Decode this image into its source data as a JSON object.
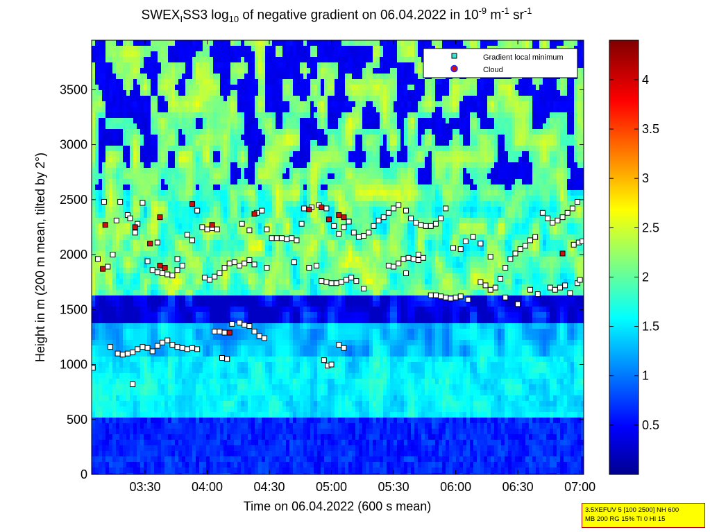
{
  "title": {
    "prefix": "SWEX",
    "prefix_sub": "I",
    "name": "SS3 log",
    "log_sub": "10",
    "middle": " of negative gradient on 06.04.2022 in 10",
    "exp1": "-9",
    "unit1": " m",
    "exp2": "-1",
    "unit2": " sr",
    "exp3": "-1"
  },
  "info_box": {
    "line1": "3.5XEFUV 5 [100 2500] NH 600",
    "line2": "MB 200 RG 15% TI 0 HI 15"
  },
  "chart_data": {
    "type": "heatmap",
    "xlabel": "Time on 06.04.2022 (600 s mean)",
    "ylabel": "Height in m (200 m mean, tilted by 2°)",
    "x_tick_labels": [
      "03:30",
      "04:00",
      "04:30",
      "05:00",
      "05:30",
      "06:00",
      "06:30",
      "07:00"
    ],
    "x_tick_hours": [
      3.5,
      4.0,
      4.5,
      5.0,
      5.5,
      6.0,
      6.5,
      7.0
    ],
    "xlim_hours": [
      3.07,
      7.03
    ],
    "y_ticks": [
      0,
      500,
      1000,
      1500,
      2000,
      2500,
      3000,
      3500
    ],
    "ylim": [
      0,
      3950
    ],
    "colorbar": {
      "ticks": [
        0.5,
        1,
        1.5,
        2,
        2.5,
        3,
        3.5,
        4
      ],
      "range": [
        0,
        4.4
      ],
      "colormap": "jet"
    },
    "legend": {
      "placement": "top-right",
      "entries": [
        {
          "label": "Gradient local minimum",
          "color": "#40e0d0"
        },
        {
          "label": "Cloud",
          "color": "#d01010"
        }
      ]
    },
    "gradient_minima": [
      [
        3.08,
        970
      ],
      [
        3.12,
        1960
      ],
      [
        3.17,
        2480
      ],
      [
        3.2,
        1890
      ],
      [
        3.24,
        2000
      ],
      [
        3.27,
        2310
      ],
      [
        3.22,
        1160
      ],
      [
        3.28,
        1100
      ],
      [
        3.32,
        1090
      ],
      [
        3.36,
        1100
      ],
      [
        3.4,
        1110
      ],
      [
        3.44,
        1140
      ],
      [
        3.48,
        1160
      ],
      [
        3.52,
        1150
      ],
      [
        3.56,
        1120
      ],
      [
        3.6,
        1170
      ],
      [
        3.64,
        1200
      ],
      [
        3.68,
        1220
      ],
      [
        3.72,
        1180
      ],
      [
        3.76,
        1160
      ],
      [
        3.8,
        1150
      ],
      [
        3.84,
        1140
      ],
      [
        3.88,
        1150
      ],
      [
        3.92,
        1140
      ],
      [
        3.3,
        2480
      ],
      [
        3.36,
        2360
      ],
      [
        3.42,
        2200
      ],
      [
        3.48,
        2470
      ],
      [
        3.52,
        1940
      ],
      [
        3.56,
        1860
      ],
      [
        3.6,
        1840
      ],
      [
        3.64,
        1830
      ],
      [
        3.68,
        1820
      ],
      [
        3.72,
        1810
      ],
      [
        3.76,
        1860
      ],
      [
        3.8,
        1900
      ],
      [
        3.84,
        2180
      ],
      [
        3.88,
        2130
      ],
      [
        3.92,
        2400
      ],
      [
        3.96,
        2250
      ],
      [
        4.0,
        2230
      ],
      [
        4.04,
        2240
      ],
      [
        4.08,
        2230
      ],
      [
        3.98,
        1790
      ],
      [
        4.02,
        1770
      ],
      [
        4.06,
        1800
      ],
      [
        4.1,
        1830
      ],
      [
        4.14,
        1880
      ],
      [
        4.18,
        1920
      ],
      [
        4.22,
        1930
      ],
      [
        4.26,
        1900
      ],
      [
        4.3,
        1920
      ],
      [
        4.34,
        1950
      ],
      [
        4.38,
        1910
      ],
      [
        4.06,
        1300
      ],
      [
        4.1,
        1300
      ],
      [
        4.14,
        1290
      ],
      [
        4.2,
        1370
      ],
      [
        4.26,
        1380
      ],
      [
        4.3,
        1360
      ],
      [
        4.34,
        1350
      ],
      [
        4.38,
        1300
      ],
      [
        4.42,
        1260
      ],
      [
        4.46,
        1240
      ],
      [
        4.12,
        1060
      ],
      [
        4.16,
        1050
      ],
      [
        4.28,
        2280
      ],
      [
        4.34,
        2220
      ],
      [
        4.4,
        2380
      ],
      [
        4.44,
        2400
      ],
      [
        4.48,
        2230
      ],
      [
        4.52,
        2150
      ],
      [
        4.56,
        2150
      ],
      [
        4.6,
        2150
      ],
      [
        4.64,
        2140
      ],
      [
        4.68,
        2150
      ],
      [
        4.72,
        2130
      ],
      [
        4.78,
        2420
      ],
      [
        4.84,
        2430
      ],
      [
        4.9,
        2450
      ],
      [
        4.96,
        2420
      ],
      [
        4.82,
        1880
      ],
      [
        4.88,
        1900
      ],
      [
        4.92,
        1760
      ],
      [
        4.96,
        1750
      ],
      [
        5.0,
        1740
      ],
      [
        5.04,
        1740
      ],
      [
        5.08,
        1750
      ],
      [
        5.12,
        1770
      ],
      [
        5.16,
        1790
      ],
      [
        5.2,
        1760
      ],
      [
        4.94,
        1040
      ],
      [
        4.97,
        990
      ],
      [
        5.0,
        1000
      ],
      [
        5.06,
        1180
      ],
      [
        5.1,
        1150
      ],
      [
        5.02,
        2260
      ],
      [
        5.06,
        2190
      ],
      [
        5.1,
        2250
      ],
      [
        5.14,
        2300
      ],
      [
        5.18,
        2200
      ],
      [
        5.22,
        2160
      ],
      [
        5.26,
        2170
      ],
      [
        5.3,
        2200
      ],
      [
        5.34,
        2260
      ],
      [
        5.38,
        2310
      ],
      [
        5.42,
        2340
      ],
      [
        5.46,
        2380
      ],
      [
        5.5,
        2420
      ],
      [
        5.54,
        2450
      ],
      [
        5.46,
        1900
      ],
      [
        5.5,
        1890
      ],
      [
        5.54,
        1920
      ],
      [
        5.58,
        1960
      ],
      [
        5.62,
        1970
      ],
      [
        5.66,
        1960
      ],
      [
        5.7,
        1950
      ],
      [
        5.74,
        1970
      ],
      [
        5.6,
        2400
      ],
      [
        5.64,
        2330
      ],
      [
        5.68,
        2290
      ],
      [
        5.72,
        2270
      ],
      [
        5.76,
        2260
      ],
      [
        5.8,
        2260
      ],
      [
        5.84,
        2280
      ],
      [
        5.88,
        2330
      ],
      [
        5.92,
        2420
      ],
      [
        5.8,
        1630
      ],
      [
        5.84,
        1630
      ],
      [
        5.88,
        1620
      ],
      [
        5.92,
        1610
      ],
      [
        5.96,
        1600
      ],
      [
        6.0,
        1610
      ],
      [
        6.04,
        1620
      ],
      [
        5.98,
        2060
      ],
      [
        6.04,
        2050
      ],
      [
        6.08,
        2120
      ],
      [
        6.14,
        2160
      ],
      [
        6.2,
        1750
      ],
      [
        6.24,
        1720
      ],
      [
        6.28,
        1680
      ],
      [
        6.32,
        1700
      ],
      [
        6.36,
        1780
      ],
      [
        6.4,
        1880
      ],
      [
        6.44,
        1960
      ],
      [
        6.48,
        2010
      ],
      [
        6.52,
        2050
      ],
      [
        6.56,
        2080
      ],
      [
        6.6,
        2130
      ],
      [
        6.64,
        2160
      ],
      [
        6.7,
        2380
      ],
      [
        6.74,
        2330
      ],
      [
        6.78,
        2290
      ],
      [
        6.82,
        2310
      ],
      [
        6.86,
        2340
      ],
      [
        6.9,
        2380
      ],
      [
        6.94,
        2420
      ],
      [
        6.98,
        2480
      ],
      [
        6.76,
        1700
      ],
      [
        6.8,
        1680
      ],
      [
        6.84,
        1700
      ],
      [
        6.88,
        1720
      ],
      [
        6.92,
        1650
      ],
      [
        6.98,
        1740
      ],
      [
        7.0,
        1770
      ],
      [
        6.95,
        2090
      ],
      [
        6.99,
        2110
      ],
      [
        7.02,
        2120
      ],
      [
        3.4,
        820
      ],
      [
        3.38,
        2330
      ],
      [
        3.44,
        2280
      ],
      [
        3.6,
        2110
      ],
      [
        3.76,
        1960
      ],
      [
        4.48,
        1880
      ],
      [
        4.7,
        1930
      ],
      [
        4.76,
        2280
      ],
      [
        5.26,
        1690
      ],
      [
        5.6,
        1830
      ],
      [
        5.7,
        2000
      ],
      [
        6.1,
        1590
      ],
      [
        6.2,
        2100
      ],
      [
        6.28,
        1980
      ],
      [
        6.4,
        1610
      ],
      [
        6.5,
        1550
      ],
      [
        6.6,
        1680
      ],
      [
        6.66,
        1640
      ]
    ],
    "cloud_points": [
      [
        3.16,
        1870
      ],
      [
        3.18,
        2270
      ],
      [
        3.42,
        2250
      ],
      [
        3.54,
        2100
      ],
      [
        3.62,
        1900
      ],
      [
        3.66,
        1880
      ],
      [
        3.88,
        2460
      ],
      [
        4.04,
        2270
      ],
      [
        4.18,
        1290
      ],
      [
        4.38,
        2370
      ],
      [
        4.82,
        2410
      ],
      [
        4.92,
        2430
      ],
      [
        4.98,
        2320
      ],
      [
        5.06,
        2360
      ],
      [
        5.1,
        2340
      ],
      [
        6.86,
        2010
      ],
      [
        3.62,
        2340
      ]
    ]
  }
}
